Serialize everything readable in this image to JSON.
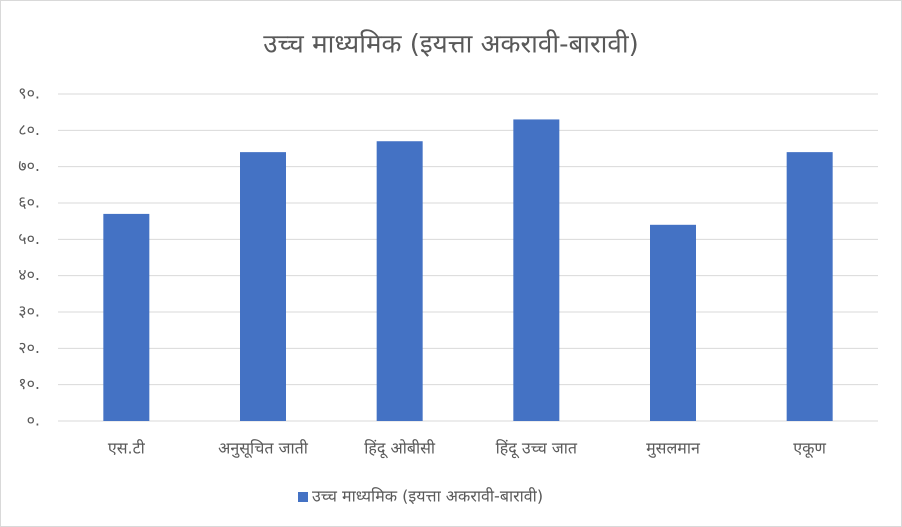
{
  "chart_data": {
    "type": "bar",
    "title": "उच्च माध्यमिक (इयत्ता अकरावी-बारावी)",
    "categories": [
      "एस.टी",
      "अनुसूचित जाती",
      "हिंदू ओबीसी",
      "हिंदू उच्च जात",
      "मुसलमान",
      "एकूण"
    ],
    "series": [
      {
        "name": "उच्च माध्यमिक (इयत्ता अकरावी-बारावी)",
        "color": "#4472c4",
        "values": [
          57,
          74,
          77,
          83,
          54,
          74
        ]
      }
    ],
    "ylim": [
      0,
      90
    ],
    "yticks": [
      {
        "value": 0,
        "label": "०."
      },
      {
        "value": 10,
        "label": "१०."
      },
      {
        "value": 20,
        "label": "२०."
      },
      {
        "value": 30,
        "label": "३०."
      },
      {
        "value": 40,
        "label": "४०."
      },
      {
        "value": 50,
        "label": "५०."
      },
      {
        "value": 60,
        "label": "६०."
      },
      {
        "value": 70,
        "label": "७०."
      },
      {
        "value": 80,
        "label": "८०."
      },
      {
        "value": 90,
        "label": "९०."
      }
    ],
    "grid": true,
    "legend": "bottom"
  }
}
